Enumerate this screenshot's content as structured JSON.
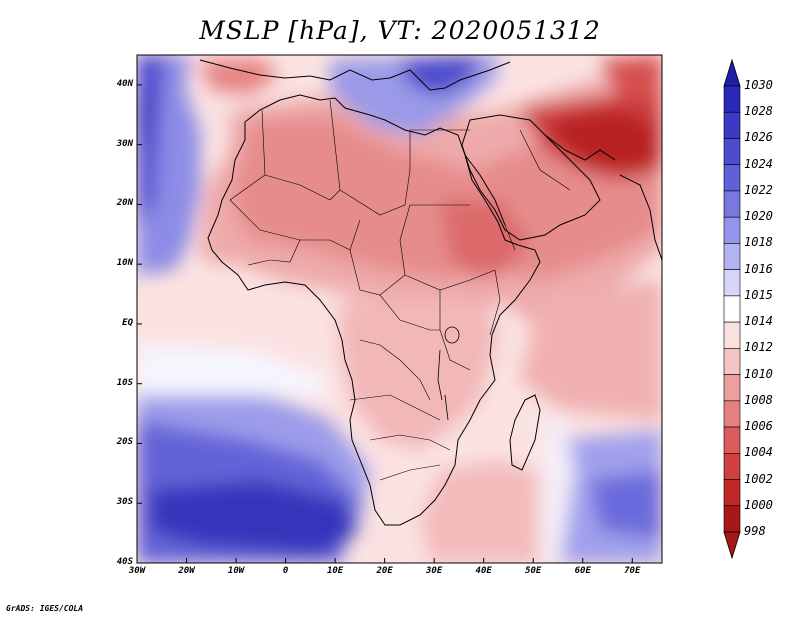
{
  "title": "MSLP [hPa], VT: 2020051312",
  "footer": "GrADS: IGES/COLA",
  "map": {
    "lon_range": [
      -30,
      76
    ],
    "lat_range": [
      -40,
      45
    ],
    "lat_labels": [
      "40N",
      "30N",
      "20N",
      "10N",
      "EQ",
      "10S",
      "20S",
      "30S",
      "40S"
    ],
    "lon_labels": [
      "30W",
      "20W",
      "10W",
      "0",
      "10E",
      "20E",
      "30E",
      "40E",
      "50E",
      "60E",
      "70E"
    ]
  },
  "colorbar": {
    "levels": [
      "1030",
      "1028",
      "1026",
      "1024",
      "1022",
      "1020",
      "1018",
      "1016",
      "1015",
      "1014",
      "1012",
      "1010",
      "1008",
      "1006",
      "1004",
      "1002",
      "1000",
      "998"
    ],
    "colors": [
      "#1e1ea8",
      "#2a2ab8",
      "#3a3ac4",
      "#4c4cd0",
      "#6060d8",
      "#7878e0",
      "#9494ea",
      "#b4b4f2",
      "#d6d6fa",
      "#ffffff",
      "#fbe0e0",
      "#f6c4c4",
      "#eea0a0",
      "#e68080",
      "#dc5c5c",
      "#d04040",
      "#c02828",
      "#a81818"
    ]
  }
}
